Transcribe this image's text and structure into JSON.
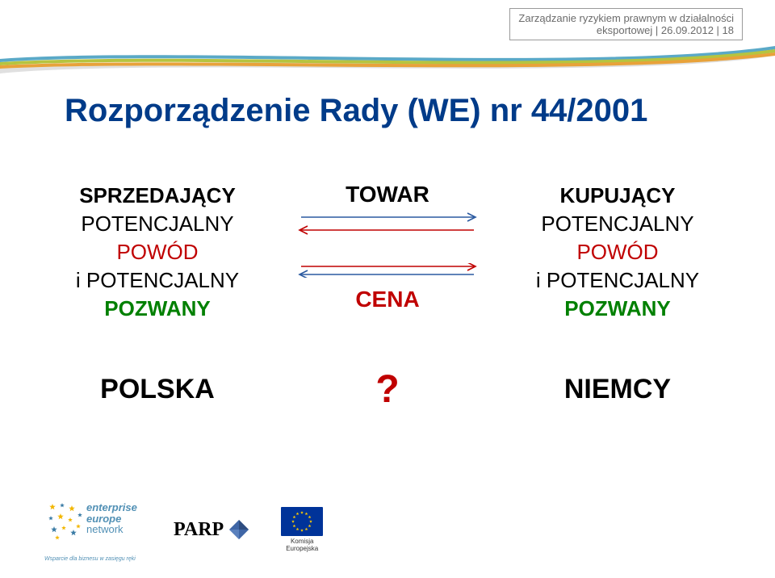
{
  "header": {
    "line1": "Zarządzanie ryzykiem prawnym w działalności",
    "line2": "eksportowej | 26.09.2012 | 18"
  },
  "title": "Rozporządzenie Rady (WE) nr 44/2001",
  "title_color": "#003b89",
  "left_col": {
    "row1": "SPRZEDAJĄCY",
    "row2": "POTENCJALNY",
    "row3": "POWÓD",
    "row4": "i POTENCJALNY",
    "row5": "POZWANY",
    "row3_color": "#c00000",
    "row5_color": "#008000"
  },
  "right_col": {
    "row1": "KUPUJĄCY",
    "row2": "POTENCJALNY",
    "row3": "POWÓD",
    "row4": "i POTENCJALNY",
    "row5": "POZWANY",
    "row3_color": "#c00000",
    "row5_color": "#008000"
  },
  "middle": {
    "towar": "TOWAR",
    "cena": "CENA",
    "cena_color": "#c00000",
    "arrow_blue": "#2b5aa0",
    "arrow_red": "#c00000"
  },
  "bottom": {
    "left": "POLSKA",
    "right": "NIEMCY",
    "qmark": "?",
    "qmark_color": "#c00000"
  },
  "swoosh": {
    "blue": "#5aa9c7",
    "green": "#b6c43f",
    "orange": "#e8a23a",
    "gray": "#e0e0e0"
  },
  "footer": {
    "een": {
      "l1": "enterprise",
      "l2": "europe",
      "l3": "network",
      "color": "#5190b5",
      "tag": "Wsparcie dla biznesu w zasięgu ręki"
    },
    "parp": "PARP",
    "eu": {
      "l1": "Komisja",
      "l2": "Europejska",
      "star_color": "#ffcc00"
    },
    "star_yellow": "#f2b600",
    "star_blue": "#3a7ba5"
  }
}
